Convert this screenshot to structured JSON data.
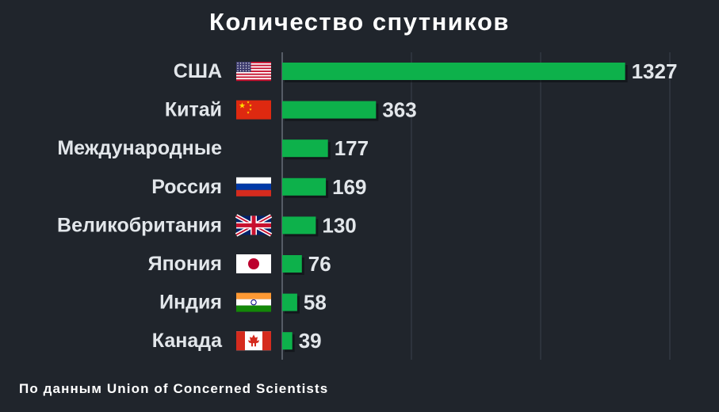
{
  "chart_data": {
    "type": "bar",
    "orientation": "horizontal",
    "title": "Количество спутников",
    "categories": [
      "США",
      "Китай",
      "Международные",
      "Россия",
      "Великобритания",
      "Япония",
      "Индия",
      "Канада"
    ],
    "values": [
      1327,
      363,
      177,
      169,
      130,
      76,
      58,
      39
    ],
    "flags": [
      "us-flag-icon",
      "cn-flag-icon",
      "",
      "ru-flag-icon",
      "gb-flag-icon",
      "jp-flag-icon",
      "in-flag-icon",
      "ca-flag-icon"
    ],
    "xlim": [
      0,
      1500
    ],
    "gridlines": [
      500,
      1000,
      1500
    ],
    "grid": true,
    "bar_color": "#0db14b",
    "background": "#20252c"
  },
  "source": "По данным Union of Concerned Scientists"
}
